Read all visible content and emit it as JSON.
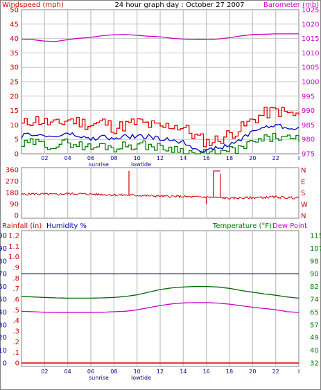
{
  "header": {
    "title": "24 hour graph day : October 27 2007",
    "left_label": "Windspeed (mph)",
    "right_label": "Barometer (mb)"
  },
  "colors": {
    "frame": "#808080",
    "grid": "#c8c8c8",
    "wind_axis": "#cc0000",
    "baro_axis": "#cc00cc",
    "wind_gust": "#e60000",
    "wind_avg": "#0000cc",
    "wind_low": "#008000",
    "barometer": "#cc00cc",
    "direction": "#cc0000",
    "rain_axis": "#cc0000",
    "humidity_axis": "#0000aa",
    "temp_axis": "#008000",
    "dew_axis": "#cc00cc",
    "humidity_line": "#000099",
    "temperature_line": "#006600",
    "dewpoint_line": "#cc00cc",
    "rain_line": "#cc0000",
    "tide_sun_text": "#000099"
  },
  "x_axis": {
    "ticks": [
      "02",
      "04",
      "06",
      "08",
      "10",
      "12",
      "14",
      "16",
      "18",
      "20",
      "22",
      "I"
    ],
    "sunrise_label": "sunrise",
    "lowtide_label": "lowtide"
  },
  "chart_data": [
    {
      "type": "line",
      "title": "24 hour graph day : October 27 2007",
      "ylabel": "Windspeed (mph)",
      "y2label": "Barometer (mb)",
      "ylim": [
        0,
        50
      ],
      "y2lim": [
        975,
        1025
      ],
      "y_ticks": [
        "0",
        "5",
        "10",
        "15",
        "20",
        "25",
        "30",
        "35",
        "40",
        "45",
        "50"
      ],
      "y2_ticks": [
        "975",
        "980",
        "985",
        "990",
        "995",
        "1000",
        "1005",
        "1010",
        "1015",
        "1020",
        "1025"
      ],
      "x": [
        0,
        1,
        2,
        3,
        4,
        5,
        6,
        7,
        8,
        9,
        10,
        11,
        12,
        13,
        14,
        15,
        16,
        17,
        18,
        19,
        20,
        21,
        22,
        23,
        24
      ],
      "series": [
        {
          "key": "gust",
          "values": [
            10,
            12,
            11,
            10,
            12,
            11,
            10,
            11,
            9,
            10,
            11,
            10,
            9,
            10,
            9,
            6,
            4,
            5,
            7,
            9,
            12,
            14,
            15,
            14,
            13
          ]
        },
        {
          "key": "avg",
          "values": [
            6,
            7,
            6,
            6,
            7,
            6,
            5,
            6,
            5,
            6,
            6,
            6,
            5,
            5,
            4,
            2,
            1,
            2,
            3,
            5,
            8,
            9,
            10,
            9,
            9
          ]
        },
        {
          "key": "low",
          "values": [
            3,
            4,
            3,
            3,
            4,
            3,
            2,
            3,
            2,
            3,
            3,
            3,
            2,
            2,
            1,
            0,
            0,
            0,
            1,
            2,
            4,
            5,
            6,
            5,
            5
          ]
        },
        {
          "key": "barometer",
          "axis": "right",
          "values": [
            1014.8,
            1014.6,
            1014.1,
            1014.0,
            1014.6,
            1015.1,
            1015.4,
            1016.0,
            1016.3,
            1016.4,
            1016.1,
            1015.8,
            1015.6,
            1015.1,
            1014.8,
            1014.6,
            1014.6,
            1014.8,
            1015.3,
            1015.9,
            1016.4,
            1016.5,
            1016.6,
            1016.6,
            1016.6
          ]
        }
      ]
    },
    {
      "type": "line",
      "ylim": [
        0,
        360
      ],
      "y_ticks": [
        "0",
        "90",
        "180",
        "270",
        "360"
      ],
      "y2_ticks": [
        "N",
        "E",
        "S",
        "W",
        "N"
      ],
      "x": [
        0,
        1,
        2,
        3,
        4,
        5,
        6,
        7,
        8,
        9,
        10,
        11,
        12,
        13,
        14,
        15,
        16,
        17,
        18,
        19,
        20,
        21,
        22,
        23,
        24
      ],
      "series": [
        {
          "key": "direction",
          "values": [
            165,
            170,
            168,
            165,
            172,
            170,
            168,
            165,
            162,
            160,
            158,
            155,
            152,
            150,
            148,
            146,
            145,
            140,
            135,
            138,
            140,
            142,
            145,
            140,
            138
          ]
        }
      ],
      "spikes": [
        {
          "x": 9.3,
          "value": 350
        },
        {
          "x": 16.0,
          "value": 90
        },
        {
          "x": 16.6,
          "value": 350
        },
        {
          "x": 17.2,
          "value": 330
        }
      ]
    },
    {
      "type": "line",
      "ylabel": "Rainfall (in)",
      "y_rain_ticks": [
        "0",
        ".1",
        ".2",
        ".3",
        ".4",
        ".5",
        ".6",
        ".7",
        ".8",
        ".9",
        "1.0",
        "1.1",
        "1.2"
      ],
      "ylabel2": "Humidity %",
      "ylim": [
        0,
        100
      ],
      "y_ticks": [
        "0",
        "10",
        "20",
        "30",
        "40",
        "50",
        "60",
        "70",
        "80",
        "90",
        "100"
      ],
      "y2label": "Temperature (°F)",
      "y3label": "Dew Point",
      "y2lim": [
        32,
        115
      ],
      "y2_ticks": [
        "32",
        "40",
        "49",
        "57",
        "65",
        "74",
        "82",
        "90",
        "98",
        "107",
        "115"
      ],
      "x": [
        0,
        1,
        2,
        3,
        4,
        5,
        6,
        7,
        8,
        9,
        10,
        11,
        12,
        13,
        14,
        15,
        16,
        17,
        18,
        19,
        20,
        21,
        22,
        23,
        24
      ],
      "series": [
        {
          "key": "humidity",
          "values": [
            70,
            70,
            70,
            70,
            70,
            70,
            70,
            70,
            70,
            70,
            70,
            70,
            70,
            70,
            70,
            70,
            70,
            70,
            70,
            70,
            70,
            70,
            70,
            70,
            70
          ]
        },
        {
          "key": "temperature",
          "axis": "right",
          "values": [
            75.3,
            75.0,
            74.7,
            74.4,
            74.2,
            74.2,
            74.2,
            74.4,
            74.7,
            75.3,
            76.4,
            78.1,
            79.8,
            80.9,
            81.5,
            81.8,
            81.8,
            81.5,
            80.6,
            79.2,
            78.1,
            77.0,
            76.1,
            75.0,
            74.2
          ]
        },
        {
          "key": "dewpoint",
          "axis": "right",
          "values": [
            65.7,
            65.4,
            65.0,
            64.9,
            64.9,
            64.9,
            64.9,
            65.0,
            65.4,
            65.7,
            66.6,
            68.0,
            69.4,
            70.5,
            71.1,
            71.3,
            71.3,
            71.0,
            70.3,
            69.3,
            68.3,
            67.5,
            66.7,
            65.4,
            64.9
          ]
        },
        {
          "key": "rain",
          "values": [
            0,
            0,
            0,
            0,
            0,
            0,
            0,
            0,
            0,
            0,
            0,
            0,
            0,
            0,
            0,
            0,
            0,
            0,
            0,
            0,
            0,
            0,
            0,
            0,
            0
          ]
        }
      ]
    }
  ]
}
